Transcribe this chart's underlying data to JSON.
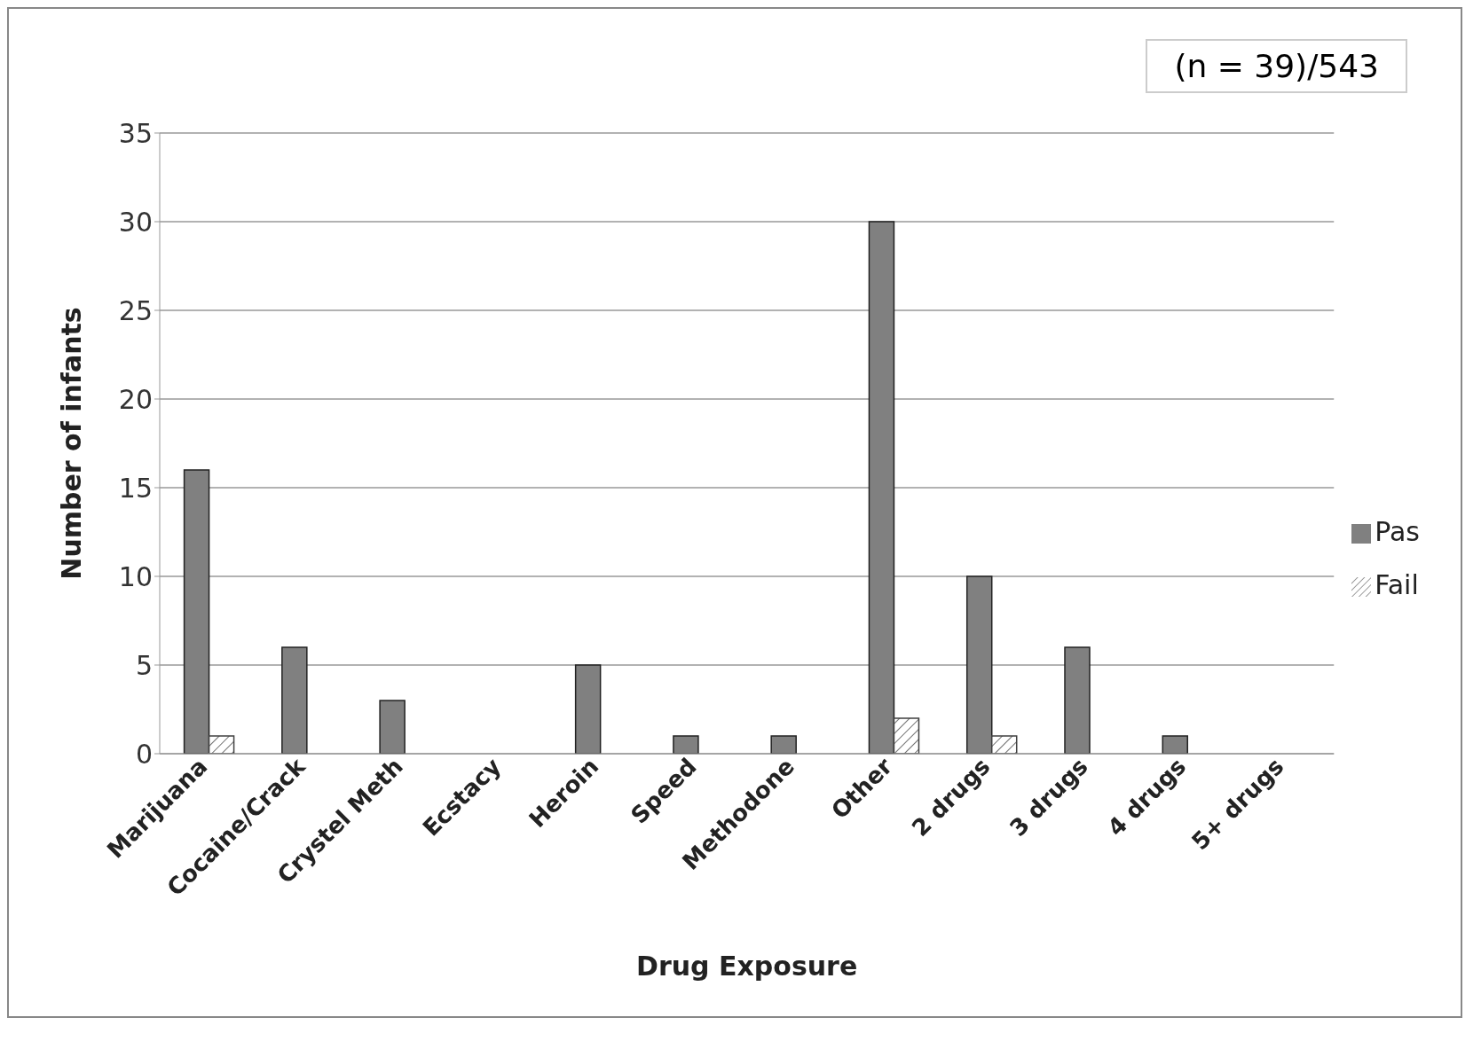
{
  "chart_data": {
    "type": "bar",
    "xlabel": "Drug Exposure",
    "ylabel": "Number of infants",
    "annotations": [
      "(n = 39)/543"
    ],
    "categories": [
      "Marijuana",
      "Cocaine/Crack",
      "Crystel Meth",
      "Ecstacy",
      "Heroin",
      "Speed",
      "Methodone",
      "Other",
      "2 drugs",
      "3 drugs",
      "4 drugs",
      "5+ drugs"
    ],
    "series": [
      {
        "name": "Pas",
        "color": "#808080",
        "values": [
          16,
          6,
          3,
          0,
          5,
          1,
          1,
          30,
          10,
          6,
          1,
          0
        ]
      },
      {
        "name": "Fail",
        "color": "#404040",
        "values": [
          1,
          0,
          0,
          0,
          0,
          0,
          0,
          2,
          1,
          0,
          0,
          0
        ]
      }
    ],
    "ylim": [
      0,
      35
    ],
    "yticks": [
      0,
      5,
      10,
      15,
      20,
      25,
      30,
      35
    ],
    "grid": "y",
    "legend": "right"
  }
}
